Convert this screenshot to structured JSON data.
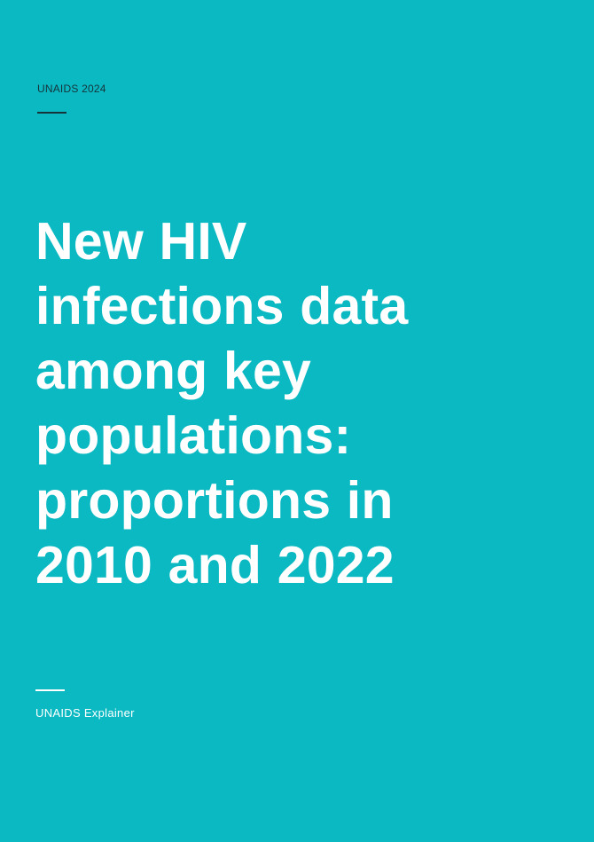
{
  "header": {
    "label": "UNAIDS 2024"
  },
  "cover": {
    "title_lines": [
      "New HIV",
      "infections data",
      "among key",
      "populations:",
      "proportions in",
      "2010 and 2022"
    ]
  },
  "footer": {
    "label": "UNAIDS Explainer"
  },
  "colors": {
    "background": "#0bb9c3",
    "title": "#ffffff",
    "header_text": "#17343a"
  }
}
